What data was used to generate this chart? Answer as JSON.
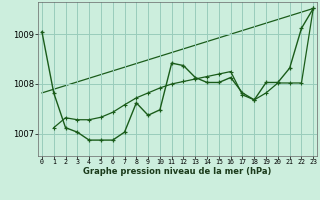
{
  "xlabel": "Graphe pression niveau de la mer (hPa)",
  "x_ticks": [
    0,
    1,
    2,
    3,
    4,
    5,
    6,
    7,
    8,
    9,
    10,
    11,
    12,
    13,
    14,
    15,
    16,
    17,
    18,
    19,
    20,
    21,
    22,
    23
  ],
  "xlim": [
    -0.3,
    23.3
  ],
  "ylim": [
    1006.55,
    1009.65
  ],
  "yticks": [
    1007,
    1008,
    1009
  ],
  "bg_color": "#cceedd",
  "grid_color": "#99ccbb",
  "line_color": "#1a5c1a",
  "line1_x": [
    0,
    1,
    2,
    3,
    4,
    5,
    6,
    7,
    8,
    9,
    10,
    11,
    12,
    13,
    14,
    15,
    16,
    17,
    18,
    19,
    20,
    21,
    22,
    23
  ],
  "line1_y": [
    1009.05,
    1007.82,
    1007.12,
    1007.03,
    1006.87,
    1006.87,
    1006.87,
    1007.03,
    1007.62,
    1007.37,
    1007.48,
    1008.42,
    1008.37,
    1008.13,
    1008.03,
    1008.03,
    1008.13,
    1007.82,
    1007.68,
    1008.03,
    1008.03,
    1008.32,
    1009.12,
    1009.52
  ],
  "line2_x": [
    1,
    2,
    3,
    4,
    5,
    6,
    7,
    8,
    9,
    10,
    11,
    12,
    13,
    14,
    15,
    16,
    17,
    18,
    19,
    20,
    21,
    22,
    23
  ],
  "line2_y": [
    1007.12,
    1007.32,
    1007.28,
    1007.28,
    1007.33,
    1007.43,
    1007.58,
    1007.72,
    1007.82,
    1007.92,
    1008.0,
    1008.05,
    1008.1,
    1008.15,
    1008.2,
    1008.25,
    1007.78,
    1007.68,
    1007.82,
    1008.02,
    1008.02,
    1008.02,
    1009.52
  ],
  "line3_x": [
    0,
    23
  ],
  "line3_y": [
    1007.82,
    1009.52
  ]
}
